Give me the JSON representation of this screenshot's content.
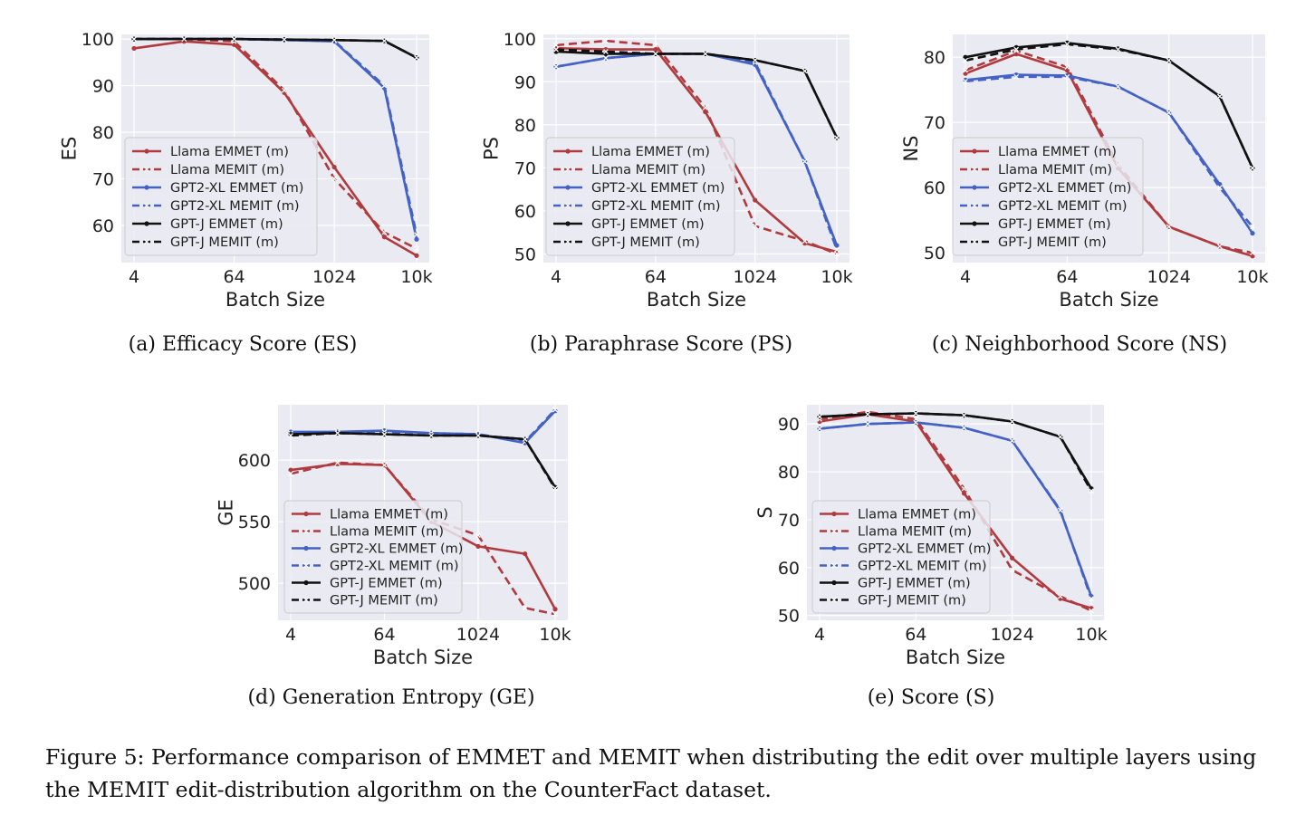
{
  "figure_caption": "Figure 5: Performance comparison of EMMET and MEMIT when distributing the edit over multiple layers using the MEMIT edit-distribution algorithm on the CounterFact dataset.",
  "colors": {
    "llama": "#b03a3e",
    "gpt2": "#4462c4",
    "gptj": "#111111",
    "plot_bg": "#eaeaf2",
    "grid": "#ffffff"
  },
  "chart_data": [
    {
      "type": "line",
      "caption": "(a) Efficacy Score (ES)",
      "xlabel": "Batch Size",
      "ylabel": "ES",
      "x": [
        4,
        16,
        64,
        256,
        1024,
        4096,
        10000
      ],
      "x_scale": "log",
      "xticks": [
        4,
        64,
        1024,
        10000
      ],
      "xtick_labels": [
        "4",
        "64",
        "1024",
        "10k"
      ],
      "ylim": [
        52,
        101
      ],
      "yticks": [
        60,
        70,
        80,
        90,
        100
      ],
      "legend_loc": "lower-left",
      "series": [
        {
          "name": "Llama EMMET (m)",
          "family": "llama",
          "style": "solid",
          "marker": "dot",
          "values": [
            98.0,
            99.5,
            98.8,
            88.5,
            72.5,
            57.5,
            53.5
          ]
        },
        {
          "name": "Llama MEMIT (m)",
          "family": "llama",
          "style": "dashed",
          "marker": "x",
          "values": [
            100.0,
            100.0,
            99.5,
            89.0,
            70.0,
            58.5,
            55.0
          ]
        },
        {
          "name": "GPT2-XL EMMET (m)",
          "family": "gpt2",
          "style": "solid",
          "marker": "dot",
          "values": [
            100.0,
            100.0,
            100.0,
            99.8,
            99.5,
            89.5,
            57.0
          ]
        },
        {
          "name": "GPT2-XL MEMIT (m)",
          "family": "gpt2",
          "style": "dashed",
          "marker": "x",
          "values": [
            100.0,
            100.0,
            100.0,
            99.8,
            99.6,
            90.0,
            58.0
          ]
        },
        {
          "name": "GPT-J EMMET (m)",
          "family": "gptj",
          "style": "solid",
          "marker": "dot",
          "values": [
            100.0,
            100.0,
            100.0,
            99.9,
            99.8,
            99.6,
            96.0
          ]
        },
        {
          "name": "GPT-J MEMIT (m)",
          "family": "gptj",
          "style": "dashed",
          "marker": "x",
          "values": [
            100.0,
            100.0,
            100.0,
            99.9,
            99.8,
            99.6,
            96.0
          ]
        }
      ]
    },
    {
      "type": "line",
      "caption": "(b) Paraphrase Score (PS)",
      "xlabel": "Batch Size",
      "ylabel": "PS",
      "x": [
        4,
        16,
        64,
        256,
        1024,
        4096,
        10000
      ],
      "x_scale": "log",
      "xticks": [
        4,
        64,
        1024,
        10000
      ],
      "xtick_labels": [
        "4",
        "64",
        "1024",
        "10k"
      ],
      "ylim": [
        48,
        101
      ],
      "yticks": [
        50,
        60,
        70,
        80,
        90,
        100
      ],
      "legend_loc": "lower-left",
      "series": [
        {
          "name": "Llama EMMET (m)",
          "family": "llama",
          "style": "solid",
          "marker": "dot",
          "values": [
            97.8,
            97.5,
            97.5,
            83.0,
            62.5,
            52.5,
            50.5
          ]
        },
        {
          "name": "Llama MEMIT (m)",
          "family": "llama",
          "style": "dashed",
          "marker": "x",
          "values": [
            98.5,
            99.5,
            98.5,
            84.0,
            56.5,
            53.0,
            50.0
          ]
        },
        {
          "name": "GPT2-XL EMMET (m)",
          "family": "gpt2",
          "style": "solid",
          "marker": "dot",
          "values": [
            93.5,
            95.5,
            96.5,
            96.5,
            94.0,
            71.5,
            52.0
          ]
        },
        {
          "name": "GPT2-XL MEMIT (m)",
          "family": "gpt2",
          "style": "dashed",
          "marker": "x",
          "values": [
            93.5,
            95.5,
            96.5,
            96.5,
            94.5,
            71.5,
            51.0
          ]
        },
        {
          "name": "GPT-J EMMET (m)",
          "family": "gptj",
          "style": "solid",
          "marker": "dot",
          "values": [
            97.0,
            96.5,
            96.5,
            96.5,
            95.0,
            92.5,
            77.0
          ]
        },
        {
          "name": "GPT-J MEMIT (m)",
          "family": "gptj",
          "style": "dashed",
          "marker": "x",
          "values": [
            97.5,
            97.0,
            96.5,
            96.5,
            95.0,
            92.5,
            77.0
          ]
        }
      ]
    },
    {
      "type": "line",
      "caption": "(c) Neighborhood Score (NS)",
      "xlabel": "Batch Size",
      "ylabel": "NS",
      "x": [
        4,
        16,
        64,
        256,
        1024,
        4096,
        10000
      ],
      "x_scale": "log",
      "xticks": [
        4,
        64,
        1024,
        10000
      ],
      "xtick_labels": [
        "4",
        "64",
        "1024",
        "10k"
      ],
      "ylim": [
        48.5,
        83.5
      ],
      "yticks": [
        50,
        60,
        70,
        80
      ],
      "legend_loc": "lower-left",
      "series": [
        {
          "name": "Llama EMMET (m)",
          "family": "llama",
          "style": "solid",
          "marker": "dot",
          "values": [
            77.5,
            80.5,
            78.0,
            63.0,
            54.0,
            51.0,
            49.5
          ]
        },
        {
          "name": "Llama MEMIT (m)",
          "family": "llama",
          "style": "dashed",
          "marker": "x",
          "values": [
            78.0,
            81.0,
            78.5,
            63.5,
            54.0,
            51.0,
            50.0
          ]
        },
        {
          "name": "GPT2-XL EMMET (m)",
          "family": "gpt2",
          "style": "solid",
          "marker": "dot",
          "values": [
            76.5,
            77.3,
            77.2,
            75.5,
            71.5,
            60.5,
            53.0
          ]
        },
        {
          "name": "GPT2-XL MEMIT (m)",
          "family": "gpt2",
          "style": "dashed",
          "marker": "x",
          "values": [
            76.3,
            77.0,
            77.0,
            75.5,
            71.5,
            60.0,
            54.0
          ]
        },
        {
          "name": "GPT-J EMMET (m)",
          "family": "gptj",
          "style": "solid",
          "marker": "dot",
          "values": [
            80.0,
            81.5,
            82.2,
            81.3,
            79.5,
            74.0,
            63.0
          ]
        },
        {
          "name": "GPT-J MEMIT (m)",
          "family": "gptj",
          "style": "dashed",
          "marker": "x",
          "values": [
            79.5,
            81.2,
            82.0,
            81.2,
            79.5,
            74.0,
            63.0
          ]
        }
      ]
    },
    {
      "type": "line",
      "caption": "(d) Generation Entropy (GE)",
      "xlabel": "Batch Size",
      "ylabel": "GE",
      "x": [
        4,
        16,
        64,
        256,
        1024,
        4096,
        10000
      ],
      "x_scale": "log",
      "xticks": [
        4,
        64,
        1024,
        10000
      ],
      "xtick_labels": [
        "4",
        "64",
        "1024",
        "10k"
      ],
      "ylim": [
        470,
        645
      ],
      "yticks": [
        500,
        550,
        600
      ],
      "legend_loc": "lower-left",
      "series": [
        {
          "name": "Llama EMMET (m)",
          "family": "llama",
          "style": "solid",
          "marker": "dot",
          "values": [
            592,
            597,
            596,
            550,
            530,
            524,
            479
          ]
        },
        {
          "name": "Llama MEMIT (m)",
          "family": "llama",
          "style": "dashed",
          "marker": "x",
          "values": [
            589,
            598,
            596,
            552,
            539,
            480,
            475
          ]
        },
        {
          "name": "GPT2-XL EMMET (m)",
          "family": "gpt2",
          "style": "solid",
          "marker": "dot",
          "values": [
            623,
            623,
            624,
            622,
            621,
            614,
            640
          ]
        },
        {
          "name": "GPT2-XL MEMIT (m)",
          "family": "gpt2",
          "style": "dashed",
          "marker": "x",
          "values": [
            622,
            623,
            623,
            622,
            621,
            615,
            641
          ]
        },
        {
          "name": "GPT-J EMMET (m)",
          "family": "gptj",
          "style": "solid",
          "marker": "dot",
          "values": [
            621,
            622,
            621,
            620,
            620,
            617,
            578
          ]
        },
        {
          "name": "GPT-J MEMIT (m)",
          "family": "gptj",
          "style": "dashed",
          "marker": "x",
          "values": [
            620,
            622,
            621,
            620,
            620,
            617,
            577
          ]
        }
      ]
    },
    {
      "type": "line",
      "caption": "(e) Score (S)",
      "xlabel": "Batch Size",
      "ylabel": "S",
      "x": [
        4,
        16,
        64,
        256,
        1024,
        4096,
        10000
      ],
      "x_scale": "log",
      "xticks": [
        4,
        64,
        1024,
        10000
      ],
      "xtick_labels": [
        "4",
        "64",
        "1024",
        "10k"
      ],
      "ylim": [
        49,
        94
      ],
      "yticks": [
        50,
        60,
        70,
        80,
        90
      ],
      "legend_loc": "lower-left",
      "series": [
        {
          "name": "Llama EMMET (m)",
          "family": "llama",
          "style": "solid",
          "marker": "dot",
          "values": [
            90.5,
            92.0,
            90.5,
            75.5,
            62.0,
            53.5,
            51.5
          ]
        },
        {
          "name": "Llama MEMIT (m)",
          "family": "llama",
          "style": "dashed",
          "marker": "x",
          "values": [
            91.0,
            92.5,
            91.0,
            76.5,
            59.5,
            54.0,
            51.0
          ]
        },
        {
          "name": "GPT2-XL EMMET (m)",
          "family": "gpt2",
          "style": "solid",
          "marker": "dot",
          "values": [
            89.0,
            90.0,
            90.3,
            89.2,
            86.5,
            71.8,
            54.0
          ]
        },
        {
          "name": "GPT2-XL MEMIT (m)",
          "family": "gpt2",
          "style": "dashed",
          "marker": "x",
          "values": [
            89.0,
            90.0,
            90.3,
            89.2,
            86.5,
            72.0,
            53.5
          ]
        },
        {
          "name": "GPT-J EMMET (m)",
          "family": "gptj",
          "style": "solid",
          "marker": "dot",
          "values": [
            91.5,
            92.0,
            92.2,
            91.8,
            90.5,
            87.3,
            76.5
          ]
        },
        {
          "name": "GPT-J MEMIT (m)",
          "family": "gptj",
          "style": "dashed",
          "marker": "x",
          "values": [
            91.5,
            92.0,
            92.2,
            91.8,
            90.5,
            87.3,
            76.0
          ]
        }
      ]
    }
  ]
}
